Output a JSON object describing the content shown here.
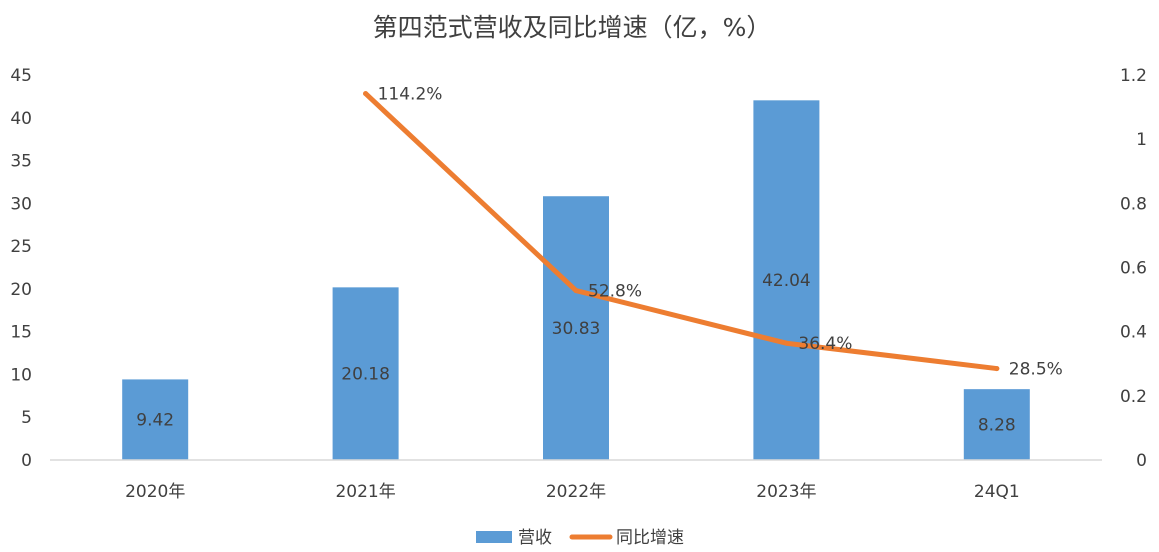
{
  "chart_data": {
    "type": "bar",
    "title": "第四范式营收及同比增速（亿，%）",
    "categories": [
      "2020年",
      "2021年",
      "2022年",
      "2023年",
      "24Q1"
    ],
    "series": [
      {
        "name": "营收",
        "type": "bar",
        "axis": "left",
        "values": [
          9.42,
          20.18,
          30.83,
          42.04,
          8.28
        ],
        "labels": [
          "9.42",
          "20.18",
          "30.83",
          "42.04",
          "8.28"
        ],
        "color": "#5b9bd5"
      },
      {
        "name": "同比增速",
        "type": "line",
        "axis": "right",
        "values": [
          null,
          1.142,
          0.528,
          0.364,
          0.285
        ],
        "labels": [
          "",
          "114.2%",
          "52.8%",
          "36.4%",
          "28.5%"
        ],
        "color": "#ed7d31"
      }
    ],
    "y_left": {
      "min": 0,
      "max": 45,
      "ticks": [
        "0",
        "5",
        "10",
        "15",
        "20",
        "25",
        "30",
        "35",
        "40",
        "45"
      ]
    },
    "y_right": {
      "min": 0,
      "max": 1.2,
      "ticks": [
        "0",
        "0.2",
        "0.4",
        "0.6",
        "0.8",
        "1",
        "1.2"
      ]
    },
    "grid": false,
    "legend": "bottom"
  }
}
